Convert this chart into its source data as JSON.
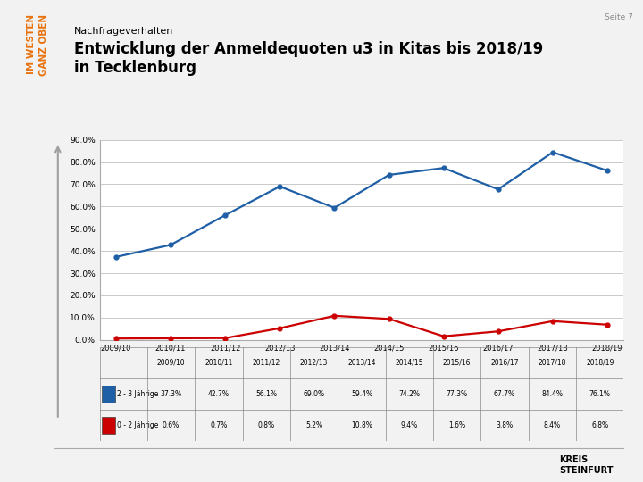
{
  "title_small": "Nachfrageverhalten",
  "title_large": "Entwicklung der Anmeldequoten u3 in Kitas bis 2018/19\nin Tecklenburg",
  "page_label": "Seite 7",
  "x_labels": [
    "2009/10",
    "2010/11",
    "2011/12",
    "2012/13",
    "2013/14",
    "2014/15",
    "2015/16",
    "2016/17",
    "2017/18",
    "2018/19"
  ],
  "series": [
    {
      "label": "2 - 3 Jährige",
      "color": "#1f5fa6",
      "values": [
        37.3,
        42.7,
        56.1,
        69.0,
        59.4,
        74.2,
        77.3,
        67.7,
        84.4,
        76.1
      ]
    },
    {
      "label": "0 - 2 Jährige",
      "color": "#cc0000",
      "values": [
        0.6,
        0.7,
        0.8,
        5.2,
        10.8,
        9.4,
        1.6,
        3.8,
        8.4,
        6.8
      ]
    }
  ],
  "ylim": [
    0,
    90
  ],
  "yticks": [
    0,
    10,
    20,
    30,
    40,
    50,
    60,
    70,
    80,
    90
  ],
  "ytick_labels": [
    "0.0%",
    "10.0%",
    "20.0%",
    "30.0%",
    "40.0%",
    "50.0%",
    "60.0%",
    "70.0%",
    "80.0%",
    "90.0%"
  ],
  "table_row_labels": [
    "2 - 3 Jährige",
    "0 - 2 Jährige"
  ],
  "table_row_colors": [
    "#1f5fa6",
    "#cc0000"
  ],
  "table_values_row1": [
    "37.3%",
    "42.7%",
    "56.1%",
    "69.0%",
    "59.4%",
    "74.2%",
    "77.3%",
    "67.7%",
    "84.4%",
    "76.1%"
  ],
  "table_values_row2": [
    "0.6%",
    "0.7%",
    "0.8%",
    "5.2%",
    "10.8%",
    "9.4%",
    "1.6%",
    "3.8%",
    "8.4%",
    "6.8%"
  ],
  "sidebar_text_line1": "IM WESTEN",
  "sidebar_text_line2": "GANZ OBEN",
  "sidebar_text_color": "#e8720c",
  "background_color": "#f2f2f2",
  "plot_bg_color": "#ffffff",
  "grid_color": "#c0c0c0",
  "arrow_color": "#a0a0a0"
}
